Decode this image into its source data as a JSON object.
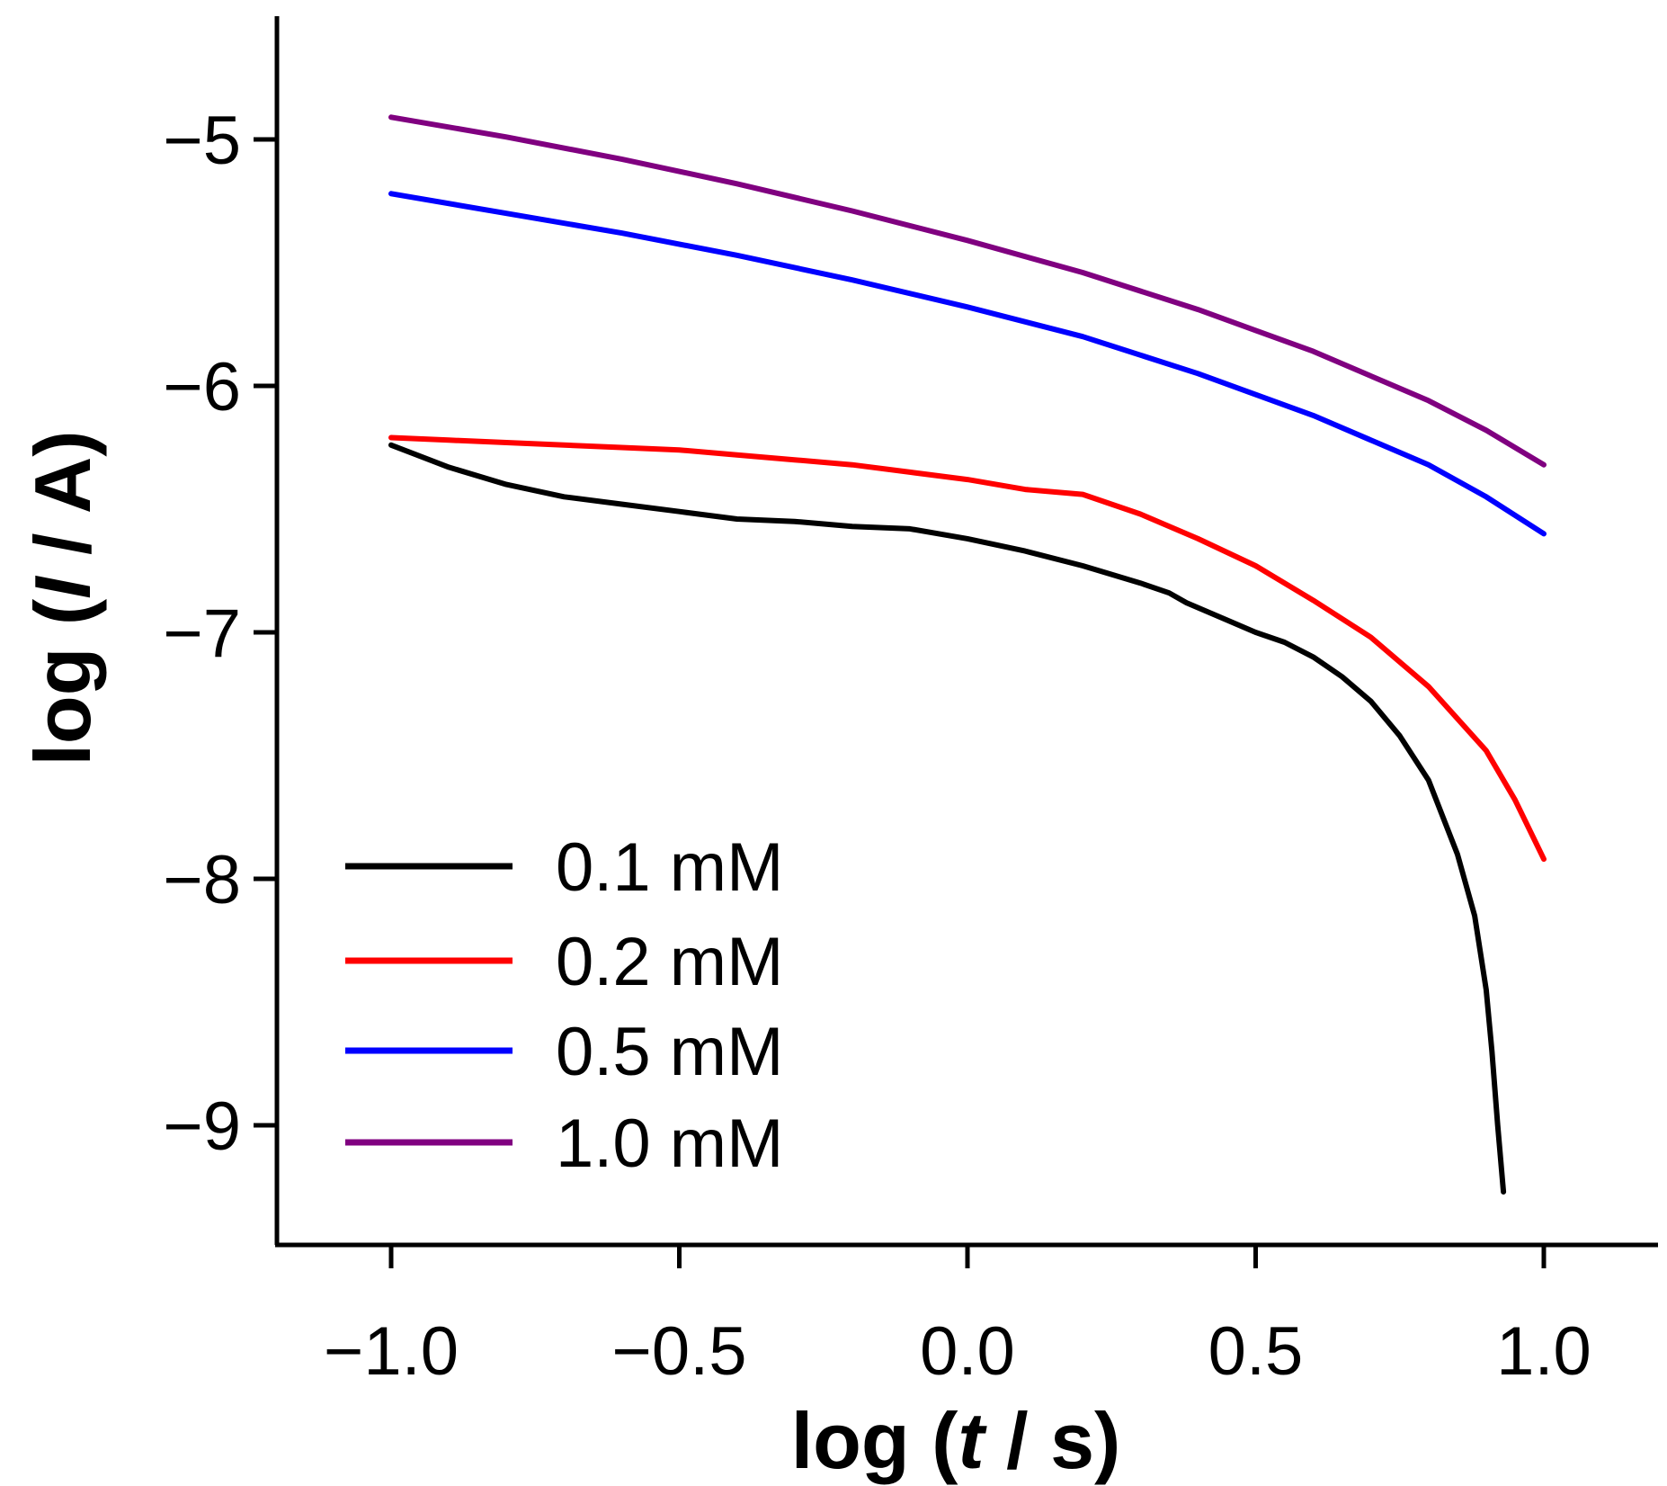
{
  "chart_data": {
    "type": "line",
    "title": "",
    "xlabel": {
      "prefix": "log (",
      "var": "t",
      "suffix": " / s)"
    },
    "ylabel": {
      "prefix": "log (",
      "var": "I",
      "suffix": " / A)"
    },
    "xlim": [
      -1.2,
      1.2
    ],
    "ylim": [
      -9.5,
      -4.5
    ],
    "x_ticks": [
      -1.0,
      -0.5,
      0.0,
      0.5,
      1.0
    ],
    "x_tick_labels": [
      "−1.0",
      "−0.5",
      "0.0",
      "0.5",
      "1.0"
    ],
    "y_ticks": [
      -5,
      -6,
      -7,
      -8,
      -9
    ],
    "y_tick_labels": [
      "−5",
      "−6",
      "−7",
      "−8",
      "−9"
    ],
    "grid": false,
    "legend_position": "bottom-left",
    "series": [
      {
        "name": "0.1 mM",
        "color": "#000000",
        "points": [
          [
            -1.0,
            -6.24
          ],
          [
            -0.9,
            -6.33
          ],
          [
            -0.8,
            -6.4
          ],
          [
            -0.7,
            -6.45
          ],
          [
            -0.6,
            -6.48
          ],
          [
            -0.5,
            -6.51
          ],
          [
            -0.4,
            -6.54
          ],
          [
            -0.3,
            -6.55
          ],
          [
            -0.2,
            -6.57
          ],
          [
            -0.1,
            -6.58
          ],
          [
            0.0,
            -6.62
          ],
          [
            0.1,
            -6.67
          ],
          [
            0.2,
            -6.73
          ],
          [
            0.3,
            -6.8
          ],
          [
            0.35,
            -6.84
          ],
          [
            0.38,
            -6.88
          ],
          [
            0.45,
            -6.95
          ],
          [
            0.5,
            -7.0
          ],
          [
            0.55,
            -7.04
          ],
          [
            0.6,
            -7.1
          ],
          [
            0.65,
            -7.18
          ],
          [
            0.7,
            -7.28
          ],
          [
            0.75,
            -7.42
          ],
          [
            0.8,
            -7.6
          ],
          [
            0.85,
            -7.9
          ],
          [
            0.88,
            -8.15
          ],
          [
            0.9,
            -8.45
          ],
          [
            0.91,
            -8.7
          ],
          [
            0.92,
            -9.0
          ],
          [
            0.93,
            -9.27
          ]
        ]
      },
      {
        "name": "0.2 mM",
        "color": "#ff0000",
        "points": [
          [
            -1.0,
            -6.21
          ],
          [
            -0.9,
            -6.22
          ],
          [
            -0.8,
            -6.23
          ],
          [
            -0.7,
            -6.24
          ],
          [
            -0.6,
            -6.25
          ],
          [
            -0.5,
            -6.26
          ],
          [
            -0.4,
            -6.28
          ],
          [
            -0.3,
            -6.3
          ],
          [
            -0.2,
            -6.32
          ],
          [
            -0.1,
            -6.35
          ],
          [
            0.0,
            -6.38
          ],
          [
            0.1,
            -6.42
          ],
          [
            0.2,
            -6.44
          ],
          [
            0.3,
            -6.52
          ],
          [
            0.4,
            -6.62
          ],
          [
            0.5,
            -6.73
          ],
          [
            0.6,
            -6.87
          ],
          [
            0.7,
            -7.02
          ],
          [
            0.8,
            -7.22
          ],
          [
            0.9,
            -7.48
          ],
          [
            0.95,
            -7.68
          ],
          [
            1.0,
            -7.92
          ]
        ]
      },
      {
        "name": "0.5 mM",
        "color": "#0000ff",
        "points": [
          [
            -1.0,
            -5.22
          ],
          [
            -0.8,
            -5.3
          ],
          [
            -0.6,
            -5.38
          ],
          [
            -0.4,
            -5.47
          ],
          [
            -0.2,
            -5.57
          ],
          [
            0.0,
            -5.68
          ],
          [
            0.2,
            -5.8
          ],
          [
            0.4,
            -5.95
          ],
          [
            0.6,
            -6.12
          ],
          [
            0.8,
            -6.32
          ],
          [
            0.9,
            -6.45
          ],
          [
            1.0,
            -6.6
          ]
        ]
      },
      {
        "name": "1.0 mM",
        "color": "#800080",
        "points": [
          [
            -1.0,
            -4.91
          ],
          [
            -0.8,
            -4.99
          ],
          [
            -0.6,
            -5.08
          ],
          [
            -0.4,
            -5.18
          ],
          [
            -0.2,
            -5.29
          ],
          [
            0.0,
            -5.41
          ],
          [
            0.2,
            -5.54
          ],
          [
            0.4,
            -5.69
          ],
          [
            0.6,
            -5.86
          ],
          [
            0.8,
            -6.06
          ],
          [
            0.9,
            -6.18
          ],
          [
            1.0,
            -6.32
          ]
        ]
      }
    ]
  }
}
